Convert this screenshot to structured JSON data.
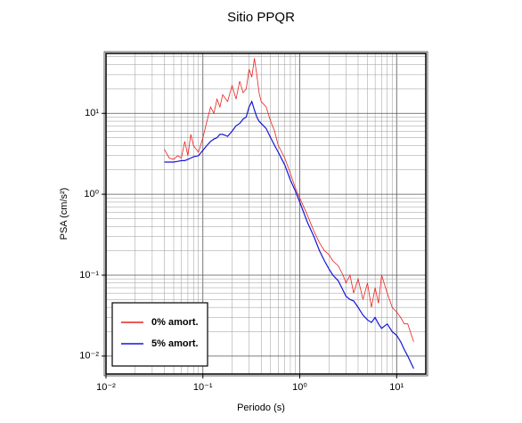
{
  "chart_data": {
    "type": "line",
    "title": "Sitio PPQR",
    "xlabel": "Periodo (s)",
    "ylabel": "PSA (cm/s²)",
    "xlog": true,
    "ylog": true,
    "grid": true,
    "legend": "lower left",
    "xlim": [
      0.01,
      20
    ],
    "ylim": [
      0.006,
      55
    ],
    "xticks": [
      {
        "value": 0.01,
        "label": "10⁻²"
      },
      {
        "value": 0.1,
        "label": "10⁻¹"
      },
      {
        "value": 1,
        "label": "10⁰"
      },
      {
        "value": 10,
        "label": "10¹"
      }
    ],
    "yticks": [
      {
        "value": 0.01,
        "label": "10⁻²"
      },
      {
        "value": 0.1,
        "label": "10⁻¹"
      },
      {
        "value": 1,
        "label": "10⁰"
      },
      {
        "value": 10,
        "label": "10¹"
      }
    ],
    "x": [
      0.04,
      0.045,
      0.05,
      0.055,
      0.06,
      0.065,
      0.07,
      0.075,
      0.08,
      0.09,
      0.1,
      0.11,
      0.12,
      0.13,
      0.14,
      0.15,
      0.16,
      0.18,
      0.2,
      0.22,
      0.24,
      0.26,
      0.28,
      0.3,
      0.32,
      0.34,
      0.36,
      0.38,
      0.4,
      0.45,
      0.5,
      0.55,
      0.6,
      0.7,
      0.8,
      0.9,
      1,
      1.2,
      1.4,
      1.6,
      1.8,
      2,
      2.2,
      2.5,
      2.8,
      3,
      3.3,
      3.6,
      4,
      4.5,
      5,
      5.5,
      6,
      6.5,
      7,
      8,
      9,
      10,
      11,
      12,
      13,
      15
    ],
    "series": [
      {
        "name": "0% amort.",
        "color": "#e8221e",
        "values": [
          3.6,
          2.8,
          2.7,
          3.0,
          2.8,
          4.5,
          3.0,
          5.5,
          4.0,
          3.3,
          5,
          8,
          12,
          10,
          15,
          12,
          17,
          14,
          22,
          15,
          25,
          18,
          20,
          35,
          28,
          48,
          30,
          18,
          14,
          12,
          8,
          6,
          4,
          2.8,
          1.8,
          1.2,
          0.9,
          0.55,
          0.35,
          0.25,
          0.2,
          0.18,
          0.15,
          0.13,
          0.1,
          0.08,
          0.1,
          0.06,
          0.09,
          0.05,
          0.08,
          0.04,
          0.07,
          0.045,
          0.1,
          0.06,
          0.04,
          0.035,
          0.03,
          0.025,
          0.025,
          0.015
        ]
      },
      {
        "name": "5% amort.",
        "color": "#1515d8",
        "values": [
          2.5,
          2.5,
          2.5,
          2.55,
          2.6,
          2.6,
          2.7,
          2.8,
          2.9,
          3.0,
          3.5,
          4.0,
          4.5,
          4.8,
          5.0,
          5.5,
          5.5,
          5.2,
          6.0,
          7.0,
          7.5,
          8.5,
          9.0,
          12,
          14,
          11,
          9,
          8,
          7.5,
          6.5,
          5,
          4,
          3.3,
          2.3,
          1.5,
          1.1,
          0.8,
          0.45,
          0.3,
          0.2,
          0.15,
          0.12,
          0.1,
          0.085,
          0.065,
          0.055,
          0.05,
          0.048,
          0.04,
          0.032,
          0.028,
          0.026,
          0.03,
          0.025,
          0.022,
          0.025,
          0.02,
          0.018,
          0.015,
          0.012,
          0.01,
          0.007
        ]
      }
    ]
  }
}
